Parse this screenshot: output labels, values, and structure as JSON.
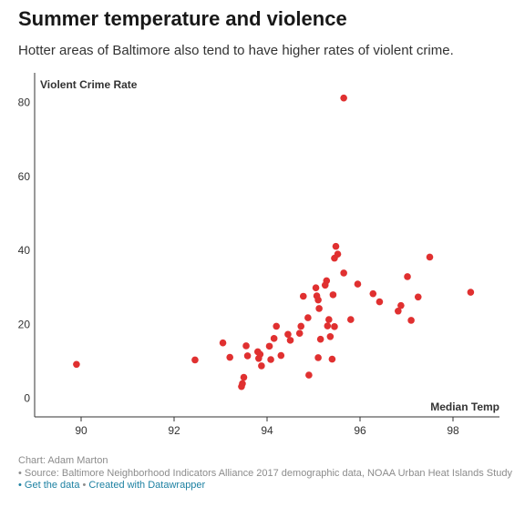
{
  "header": {
    "title": "Summer temperature and violence",
    "subtitle": "Hotter areas of Baltimore also tend to have higher rates of violent crime."
  },
  "chart_data": {
    "type": "scatter",
    "title": "Summer temperature and violence",
    "subtitle": "Hotter areas of Baltimore also tend to have higher rates of violent crime.",
    "xlabel": "Median Temp",
    "ylabel": "Violent Crime Rate",
    "xlim": [
      89,
      99
    ],
    "ylim": [
      -5,
      88
    ],
    "xticks": [
      90,
      92,
      94,
      96,
      98
    ],
    "yticks": [
      0,
      20,
      40,
      60,
      80
    ],
    "grid": false,
    "color": "#e03030",
    "points": [
      {
        "x": 89.9,
        "y": 9.2
      },
      {
        "x": 92.45,
        "y": 10.4
      },
      {
        "x": 93.05,
        "y": 15.0
      },
      {
        "x": 93.2,
        "y": 11.1
      },
      {
        "x": 93.45,
        "y": 3.2
      },
      {
        "x": 93.47,
        "y": 4.0
      },
      {
        "x": 93.5,
        "y": 5.7
      },
      {
        "x": 93.55,
        "y": 14.2
      },
      {
        "x": 93.58,
        "y": 11.5
      },
      {
        "x": 93.8,
        "y": 12.6
      },
      {
        "x": 93.82,
        "y": 10.8
      },
      {
        "x": 93.85,
        "y": 11.9
      },
      {
        "x": 93.88,
        "y": 8.8
      },
      {
        "x": 94.05,
        "y": 14.1
      },
      {
        "x": 94.08,
        "y": 10.5
      },
      {
        "x": 94.15,
        "y": 16.2
      },
      {
        "x": 94.2,
        "y": 19.5
      },
      {
        "x": 94.3,
        "y": 11.6
      },
      {
        "x": 94.45,
        "y": 17.3
      },
      {
        "x": 94.5,
        "y": 15.7
      },
      {
        "x": 94.7,
        "y": 17.6
      },
      {
        "x": 94.73,
        "y": 19.5
      },
      {
        "x": 94.78,
        "y": 27.6
      },
      {
        "x": 94.88,
        "y": 21.8
      },
      {
        "x": 94.9,
        "y": 6.3
      },
      {
        "x": 95.05,
        "y": 29.9
      },
      {
        "x": 95.07,
        "y": 27.7
      },
      {
        "x": 95.1,
        "y": 26.6
      },
      {
        "x": 95.12,
        "y": 24.3
      },
      {
        "x": 95.15,
        "y": 16.0
      },
      {
        "x": 95.1,
        "y": 11.0
      },
      {
        "x": 95.25,
        "y": 30.6
      },
      {
        "x": 95.28,
        "y": 31.8
      },
      {
        "x": 95.3,
        "y": 19.6
      },
      {
        "x": 95.33,
        "y": 21.3
      },
      {
        "x": 95.36,
        "y": 16.7
      },
      {
        "x": 95.4,
        "y": 10.6
      },
      {
        "x": 95.42,
        "y": 28.0
      },
      {
        "x": 95.45,
        "y": 19.4
      },
      {
        "x": 95.45,
        "y": 37.9
      },
      {
        "x": 95.48,
        "y": 41.1
      },
      {
        "x": 95.52,
        "y": 39.0
      },
      {
        "x": 95.65,
        "y": 33.9
      },
      {
        "x": 95.65,
        "y": 81.2
      },
      {
        "x": 95.8,
        "y": 21.3
      },
      {
        "x": 95.95,
        "y": 30.9
      },
      {
        "x": 96.28,
        "y": 28.3
      },
      {
        "x": 96.42,
        "y": 26.1
      },
      {
        "x": 96.82,
        "y": 23.6
      },
      {
        "x": 96.88,
        "y": 25.1
      },
      {
        "x": 97.02,
        "y": 32.9
      },
      {
        "x": 97.1,
        "y": 21.1
      },
      {
        "x": 97.25,
        "y": 27.4
      },
      {
        "x": 97.5,
        "y": 38.2
      },
      {
        "x": 98.38,
        "y": 28.7
      }
    ]
  },
  "footer": {
    "credit": "Chart: Adam Marton",
    "source": "• Source: Baltimore Neighborhood Indicators Alliance 2017 demographic data, NOAA Urban Heat Islands Study",
    "get_data": "• Get the data",
    "separator": " • ",
    "created_with": "Created with Datawrapper"
  }
}
